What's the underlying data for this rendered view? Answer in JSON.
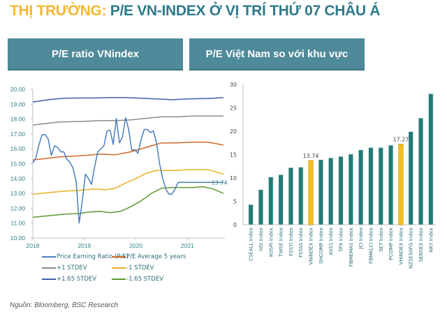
{
  "title": {
    "prefix": "THỊ TRƯỜNG:",
    "main": "P/E VN-INDEX Ở VỊ TRÍ THỨ 07 CHÂU Á"
  },
  "panels": {
    "left_title": "P/E ratio VNindex",
    "right_title": "P/E Việt Nam so với khu vực"
  },
  "source": "Nguồn: Bloomberg, BSC Research",
  "colors": {
    "pe": "#4a7ebb",
    "avg": "#d0672a",
    "plus1": "#8c8c8c",
    "minus1": "#e8b020",
    "plus165": "#3d5fae",
    "minus165": "#5a9a32",
    "bar": "#227a75",
    "bar_highlight": "#f2c018"
  },
  "chart_data": [
    {
      "type": "line",
      "title": "P/E ratio VNindex",
      "xlabel": "",
      "ylabel": "",
      "ylim": [
        10,
        20
      ],
      "yticks": [
        "10.00",
        "11.00",
        "12.00",
        "13.00",
        "14.00",
        "15.00",
        "16.00",
        "17.00",
        "18.00",
        "19.00",
        "20.00"
      ],
      "xticks": [
        {
          "label": "2018",
          "x": 2018
        },
        {
          "label": "2019",
          "x": 2019
        },
        {
          "label": "2020",
          "x": 2020
        },
        {
          "label": "2021",
          "x": 2021
        }
      ],
      "xlim": [
        2018,
        2021.7
      ],
      "legend_position": "bottom",
      "annotation": {
        "text": "13.74",
        "series": "Price Earning Ratio (P/E)"
      },
      "series": [
        {
          "name": "Price Earning Ratio (P/E)",
          "color_key": "pe",
          "x": [
            2018.0,
            2018.06,
            2018.12,
            2018.18,
            2018.24,
            2018.3,
            2018.36,
            2018.42,
            2018.48,
            2018.54,
            2018.6,
            2018.66,
            2018.72,
            2018.78,
            2018.84,
            2018.9,
            2018.96,
            2019.02,
            2019.08,
            2019.14,
            2019.2,
            2019.26,
            2019.32,
            2019.38,
            2019.44,
            2019.5,
            2019.56,
            2019.62,
            2019.68,
            2019.74,
            2019.8,
            2019.86,
            2019.92,
            2019.98,
            2020.04,
            2020.1,
            2020.16,
            2020.22,
            2020.28,
            2020.34,
            2020.4,
            2020.46,
            2020.52,
            2020.58,
            2020.64,
            2020.7,
            2020.76,
            2020.82,
            2020.88,
            2020.94,
            2021.0,
            2021.06,
            2021.12,
            2021.18,
            2021.24,
            2021.3,
            2021.36,
            2021.42,
            2021.48,
            2021.54,
            2021.6,
            2021.66,
            2021.7
          ],
          "y": [
            15.05,
            15.4,
            16.3,
            16.95,
            16.95,
            16.65,
            15.55,
            16.2,
            16.1,
            15.8,
            15.8,
            15.3,
            15.1,
            14.7,
            13.8,
            11.0,
            12.5,
            14.3,
            14.0,
            13.6,
            14.8,
            15.8,
            16.0,
            16.2,
            17.2,
            17.25,
            16.3,
            18.05,
            16.4,
            16.8,
            18.1,
            17.3,
            15.9,
            15.95,
            15.7,
            16.6,
            17.3,
            17.3,
            17.1,
            17.2,
            16.4,
            15.0,
            14.0,
            13.3,
            12.95,
            12.95,
            13.3,
            13.74,
            13.74,
            13.74,
            13.74,
            13.74,
            13.74,
            13.74,
            13.74,
            13.74,
            13.74,
            13.74,
            13.74,
            13.74,
            13.74,
            13.74,
            13.74
          ]
        },
        {
          "name": "P/E Average 5 years",
          "color_key": "avg",
          "x": [
            2018.0,
            2018.5,
            2019.0,
            2019.3,
            2019.6,
            2019.9,
            2020.2,
            2020.5,
            2020.8,
            2021.1,
            2021.4,
            2021.7
          ],
          "y": [
            15.25,
            15.45,
            15.55,
            15.65,
            15.6,
            15.8,
            16.1,
            16.4,
            16.4,
            16.45,
            16.45,
            16.25
          ]
        },
        {
          "name": "+1 STDEV",
          "color_key": "plus1",
          "x": [
            2018.0,
            2018.5,
            2019.0,
            2019.3,
            2019.6,
            2019.9,
            2020.2,
            2020.5,
            2020.8,
            2021.1,
            2021.4,
            2021.7
          ],
          "y": [
            17.6,
            17.8,
            17.85,
            17.9,
            17.9,
            17.95,
            18.05,
            18.15,
            18.15,
            18.2,
            18.2,
            18.2
          ]
        },
        {
          "name": "-1 STDEV",
          "color_key": "minus1",
          "x": [
            2018.0,
            2018.3,
            2018.6,
            2018.9,
            2019.2,
            2019.4,
            2019.6,
            2019.8,
            2020.0,
            2020.2,
            2020.4,
            2020.6,
            2020.8,
            2021.0,
            2021.2,
            2021.4,
            2021.55,
            2021.7
          ],
          "y": [
            12.95,
            13.05,
            13.15,
            13.2,
            13.3,
            13.25,
            13.35,
            13.7,
            14.0,
            14.35,
            14.55,
            14.55,
            14.55,
            14.6,
            14.6,
            14.6,
            14.45,
            14.3
          ]
        },
        {
          "name": "+1.65 STDEV",
          "color_key": "plus165",
          "x": [
            2018.0,
            2018.3,
            2018.6,
            2018.9,
            2019.2,
            2019.5,
            2019.8,
            2020.1,
            2020.4,
            2020.7,
            2021.0,
            2021.3,
            2021.5,
            2021.7
          ],
          "y": [
            19.15,
            19.3,
            19.4,
            19.42,
            19.42,
            19.45,
            19.45,
            19.4,
            19.35,
            19.3,
            19.35,
            19.38,
            19.4,
            19.45
          ]
        },
        {
          "name": "-1.65 STDEV",
          "color_key": "minus165",
          "x": [
            2018.0,
            2018.3,
            2018.6,
            2018.9,
            2019.1,
            2019.3,
            2019.5,
            2019.7,
            2019.9,
            2020.1,
            2020.3,
            2020.5,
            2020.7,
            2020.9,
            2021.1,
            2021.3,
            2021.5,
            2021.7
          ],
          "y": [
            11.4,
            11.5,
            11.6,
            11.65,
            11.75,
            11.8,
            11.7,
            11.8,
            12.1,
            12.5,
            13.0,
            13.35,
            13.4,
            13.4,
            13.4,
            13.45,
            13.3,
            13.0
          ]
        }
      ]
    },
    {
      "type": "bar",
      "title": "P/E Việt Nam so với khu vực",
      "xlabel": "",
      "ylabel": "",
      "ylim": [
        0,
        30
      ],
      "yticks": [
        "0",
        "5",
        "10",
        "15",
        "20",
        "25",
        "30"
      ],
      "categories": [
        "CSEALL Index",
        "HSI Index",
        "KOSPI Index",
        "TWSE Index",
        "FSSTI Index",
        "FSTAS Index",
        "VNINDEX Index",
        "SHCOMP Index",
        "AS51 Index",
        "TPX Index",
        "FBMEMAS Index",
        "JCI Index",
        "FBMKLCI Index",
        "SET Index",
        "PCOMP Index",
        "VHINDEX Index",
        "NZSE50FG Index",
        "SENSEX Index",
        "NKY Index"
      ],
      "values": [
        4.3,
        7.5,
        10.2,
        10.7,
        12.2,
        12.3,
        13.74,
        13.9,
        14.3,
        14.6,
        15.1,
        16.0,
        16.5,
        16.5,
        17.0,
        17.27,
        19.9,
        22.8,
        28.0
      ],
      "highlight": [
        "VNINDEX Index",
        "VHINDEX Index"
      ],
      "data_labels": [
        {
          "category": "VNINDEX Index",
          "text": "13.74"
        },
        {
          "category": "VHINDEX Index",
          "text": "17.27"
        }
      ]
    }
  ]
}
